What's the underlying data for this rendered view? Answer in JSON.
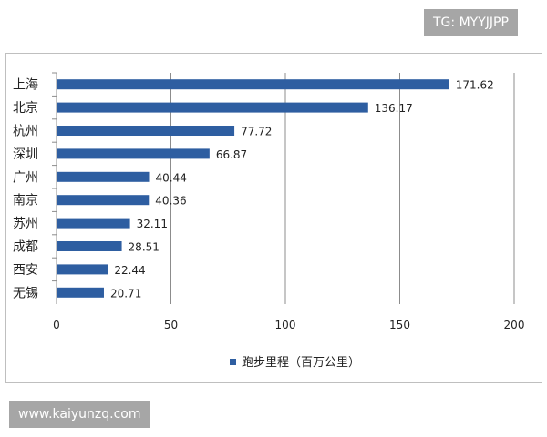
{
  "watermarks": {
    "top": "TG: MYYJJPP",
    "bottom": "www.kaiyunzq.com"
  },
  "chart_data": {
    "type": "bar",
    "orientation": "horizontal",
    "categories": [
      "上海",
      "北京",
      "杭州",
      "深圳",
      "广州",
      "南京",
      "苏州",
      "成都",
      "西安",
      "无锡"
    ],
    "series": [
      {
        "name": "跑步里程（百万公里）",
        "values": [
          171.62,
          136.17,
          77.72,
          66.87,
          40.44,
          40.36,
          32.11,
          28.51,
          22.44,
          20.71
        ],
        "color": "#2e5ea1"
      }
    ],
    "xlim": [
      0,
      200
    ],
    "x_ticks": [
      0,
      50,
      100,
      150,
      200
    ],
    "grid": true,
    "legend_position": "bottom",
    "data_labels": true
  }
}
